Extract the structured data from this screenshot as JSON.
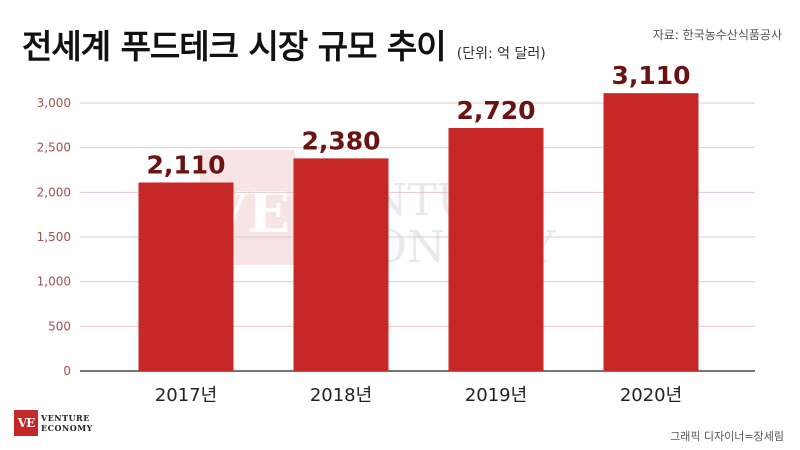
{
  "header": {
    "title": "전세계 푸드테크 시장 규모 추이",
    "unit": "(단위: 억 달러)",
    "source": "자료: 한국농수산식품공사"
  },
  "footer": {
    "logo_mark": "VE",
    "logo_line1": "VENTURE",
    "logo_line2": "ECONOMY",
    "credit": "그래픽 디자이너=장세림"
  },
  "watermark": {
    "mark": "VE",
    "line1": "VENTURE",
    "line2": "ECONOMY"
  },
  "colors": {
    "bar": "#c62828",
    "value_label": "#6b1212",
    "grid": "#e3c9c9",
    "tick_label": "#a05050"
  },
  "chart_data": {
    "type": "bar",
    "title": "전세계 푸드테크 시장 규모 추이",
    "xlabel": "",
    "ylabel": "",
    "categories": [
      "2017년",
      "2018년",
      "2019년",
      "2020년"
    ],
    "values": [
      2110,
      2380,
      2720,
      3110
    ],
    "value_labels": [
      "2,110",
      "2,380",
      "2,720",
      "3,110"
    ],
    "ylim": [
      0,
      3000
    ],
    "yticks": [
      0,
      500,
      1000,
      1500,
      2000,
      2500,
      3000
    ],
    "ytick_labels": [
      "0",
      "500",
      "1,000",
      "1,500",
      "2,000",
      "2,500",
      "3,000"
    ],
    "grid": true,
    "legend": "none"
  }
}
